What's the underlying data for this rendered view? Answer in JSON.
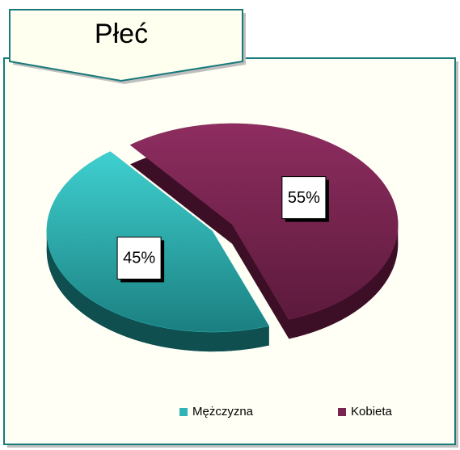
{
  "chart_data": {
    "type": "pie",
    "title": "Płeć",
    "categories": [
      "Mężczyzna",
      "Kobieta"
    ],
    "values": [
      45,
      55
    ],
    "value_labels": [
      "45%",
      "55%"
    ],
    "colors": [
      "#2fb5b5",
      "#7a2450"
    ],
    "legend": "bottom"
  }
}
